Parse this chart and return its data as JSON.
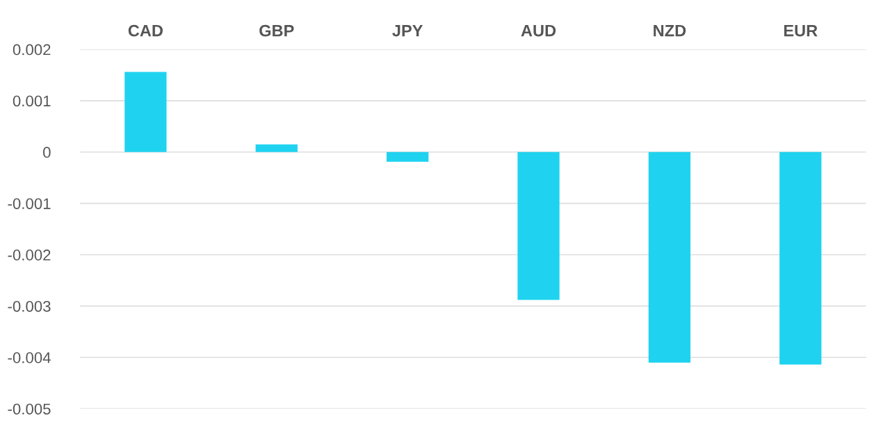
{
  "chart_data": {
    "type": "bar",
    "categories": [
      "CAD",
      "GBP",
      "JPY",
      "AUD",
      "NZD",
      "EUR"
    ],
    "values": [
      0.00156,
      0.00015,
      -0.00019,
      -0.00288,
      -0.0041,
      -0.00414
    ],
    "color": "#1fd3f0",
    "ylim": [
      -0.005,
      0.002
    ],
    "yticks": [
      -0.005,
      -0.004,
      -0.003,
      -0.002,
      -0.001,
      0,
      0.001,
      0.002
    ],
    "grid": "y"
  }
}
